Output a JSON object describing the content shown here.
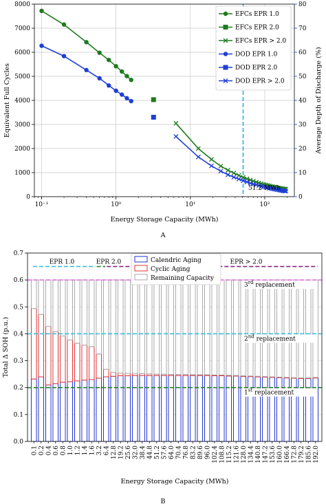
{
  "panelA": {
    "letter": "A",
    "xlabel": "Energy Storage Capacity (MWh)",
    "ylabel_left": "Equivalent Full Cycles",
    "ylabel_right": "Average Depth of Discharge (%)",
    "annotation": "51.2 MWh",
    "legend": [
      "EFCs EPR 1.0",
      "EFCs EPR 2.0",
      "EFCs EPR > 2.0",
      "DOD EPR 1.0",
      "DOD EPR 2.0",
      "DOD EPR > 2.0"
    ],
    "yticks_left": [
      "0",
      "1000",
      "2000",
      "3000",
      "4000",
      "5000",
      "6000",
      "7000",
      "8000"
    ],
    "yticks_right": [
      "0",
      "10",
      "20",
      "30",
      "40",
      "50",
      "60",
      "70",
      "80"
    ],
    "xticks": [
      "10⁻¹",
      "10⁰",
      "10¹",
      "10²"
    ]
  },
  "panelB": {
    "letter": "B",
    "xlabel": "Energy Storage Capacity (MWh)",
    "ylabel": "Total Δ SOH (p.u.)",
    "legend": [
      "Calendric Aging",
      "Cyclic Aging",
      "Remaining Capacity"
    ],
    "yticks": [
      "0.0",
      "0.1",
      "0.2",
      "0.3",
      "0.4",
      "0.5",
      "0.6",
      "0.7"
    ],
    "epr_labels": [
      "EPR 1.0",
      "EPR 2.0",
      "EPR > 2.0"
    ],
    "replacements": [
      {
        "sup": "rd",
        "label": " replacement",
        "num": "3",
        "y": 0.6
      },
      {
        "sup": "nd",
        "label": " replacement",
        "num": "2",
        "y": 0.4
      },
      {
        "sup": "st",
        "label": " replacement",
        "num": "1",
        "y": 0.2
      }
    ]
  },
  "chart_data": [
    {
      "type": "line",
      "xscale": "log",
      "xlim": [
        0.08,
        250
      ],
      "ylim_left": [
        0,
        8000
      ],
      "ylim_right": [
        0,
        80
      ],
      "vline_x": 51.2,
      "series": [
        {
          "name": "EFCs EPR 1.0",
          "axis": "left",
          "color": "#1f7a1f",
          "marker": "circle",
          "x": [
            0.1,
            0.2,
            0.4,
            0.6,
            0.8,
            1.0,
            1.2,
            1.4,
            1.6
          ],
          "y": [
            7720,
            7150,
            6420,
            5980,
            5680,
            5420,
            5200,
            5010,
            4850
          ]
        },
        {
          "name": "EFCs EPR 2.0",
          "axis": "left",
          "color": "#1f7a1f",
          "marker": "square",
          "x": [
            3.2
          ],
          "y": [
            4030
          ]
        },
        {
          "name": "EFCs EPR > 2.0",
          "axis": "left",
          "color": "#1f7a1f",
          "marker": "x",
          "x": [
            6.4,
            12.8,
            19.2,
            25.6,
            32.0,
            38.4,
            44.8,
            51.2,
            57.6,
            64.0,
            70.4,
            76.8,
            83.2,
            89.6,
            96.0,
            102.4,
            108.8,
            115.2,
            121.6,
            128.0,
            134.4,
            140.8,
            147.2,
            153.6,
            160.0,
            166.4,
            172.8,
            179.2,
            185.6,
            192.0
          ],
          "y": [
            3050,
            2000,
            1550,
            1270,
            1100,
            980,
            880,
            800,
            740,
            690,
            640,
            600,
            570,
            540,
            510,
            490,
            470,
            450,
            430,
            415,
            400,
            385,
            372,
            360,
            350,
            340,
            330,
            322,
            315,
            308
          ]
        },
        {
          "name": "DOD EPR 1.0",
          "axis": "right",
          "color": "#1f3fd6",
          "marker": "circle",
          "x": [
            0.1,
            0.2,
            0.4,
            0.6,
            0.8,
            1.0,
            1.2,
            1.4,
            1.6
          ],
          "y": [
            62.7,
            58.4,
            52.6,
            49.2,
            46.2,
            44.0,
            42.4,
            40.9,
            39.7
          ]
        },
        {
          "name": "DOD EPR 2.0",
          "axis": "right",
          "color": "#1f3fd6",
          "marker": "square",
          "x": [
            3.2
          ],
          "y": [
            33.0
          ]
        },
        {
          "name": "DOD EPR > 2.0",
          "axis": "right",
          "color": "#1f3fd6",
          "marker": "x",
          "x": [
            6.4,
            12.8,
            19.2,
            25.6,
            32.0,
            38.4,
            44.8,
            51.2,
            57.6,
            64.0,
            70.4,
            76.8,
            83.2,
            89.6,
            96.0,
            102.4,
            108.8,
            115.2,
            121.6,
            128.0,
            134.4,
            140.8,
            147.2,
            153.6,
            160.0,
            166.4,
            172.8,
            179.2,
            185.6,
            192.0
          ],
          "y": [
            25.0,
            16.5,
            12.8,
            10.6,
            9.1,
            8.1,
            7.3,
            6.6,
            6.1,
            5.6,
            5.2,
            4.9,
            4.6,
            4.3,
            4.1,
            3.9,
            3.7,
            3.5,
            3.4,
            3.2,
            3.1,
            3.0,
            2.9,
            2.8,
            2.7,
            2.6,
            2.5,
            2.4,
            2.35,
            2.3
          ]
        }
      ]
    },
    {
      "type": "bar",
      "stacked": true,
      "ylim": [
        0,
        0.7
      ],
      "categories": [
        "0.1",
        "0.2",
        "0.4",
        "0.6",
        "0.8",
        "1.0",
        "1.2",
        "1.4",
        "1.6",
        "3.2",
        "6.4",
        "12.8",
        "19.2",
        "25.6",
        "32.0",
        "38.4",
        "44.8",
        "51.2",
        "57.6",
        "64.0",
        "70.4",
        "76.8",
        "83.2",
        "89.6",
        "96.0",
        "102.4",
        "108.8",
        "115.2",
        "121.6",
        "128.0",
        "134.4",
        "140.8",
        "147.2",
        "153.6",
        "160.0",
        "166.4",
        "172.8",
        "179.2",
        "185.6",
        "192.0"
      ],
      "series": [
        {
          "name": "Calendric Aging",
          "color": "#2233cc",
          "values": [
            0.232,
            0.24,
            0.21,
            0.215,
            0.22,
            0.222,
            0.225,
            0.228,
            0.23,
            0.235,
            0.24,
            0.242,
            0.244,
            0.244,
            0.245,
            0.245,
            0.245,
            0.245,
            0.245,
            0.245,
            0.245,
            0.245,
            0.245,
            0.245,
            0.245,
            0.244,
            0.244,
            0.243,
            0.243,
            0.242,
            0.241,
            0.24,
            0.239,
            0.238,
            0.237,
            0.236,
            0.235,
            0.234,
            0.234,
            0.236
          ]
        },
        {
          "name": "Cyclic Aging",
          "color": "#e03030",
          "values": [
            0.262,
            0.232,
            0.218,
            0.193,
            0.172,
            0.155,
            0.14,
            0.13,
            0.122,
            0.09,
            0.028,
            0.015,
            0.01,
            0.009,
            0.008,
            0.007,
            0.006,
            0.005,
            0.005,
            0.004,
            0.004,
            0.004,
            0.003,
            0.003,
            0.003,
            0.003,
            0.003,
            0.003,
            0.002,
            0.002,
            0.002,
            0.002,
            0.002,
            0.002,
            0.002,
            0.002,
            0.002,
            0.002,
            0.002,
            0.002
          ]
        },
        {
          "name": "Remaining Capacity",
          "color": "#aaaaaa",
          "values": [
            0.106,
            0.128,
            0.172,
            0.192,
            0.208,
            0.223,
            0.235,
            0.242,
            0.248,
            0.275,
            0.332,
            0.343,
            0.346,
            0.347,
            0.347,
            0.348,
            0.349,
            0.35,
            0.35,
            0.351,
            0.351,
            0.351,
            0.352,
            0.352,
            0.352,
            0.353,
            0.353,
            0.354,
            0.355,
            0.356,
            0.357,
            0.358,
            0.359,
            0.36,
            0.361,
            0.362,
            0.363,
            0.364,
            0.364,
            0.362
          ]
        }
      ],
      "hlines": [
        0.6,
        0.4,
        0.2
      ]
    }
  ]
}
